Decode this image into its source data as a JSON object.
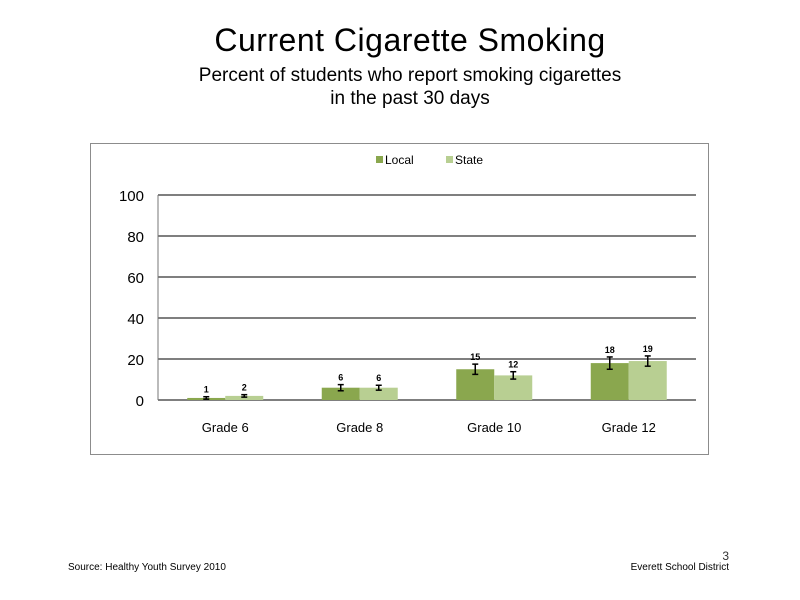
{
  "slide": {
    "title": "Current Cigarette Smoking",
    "subtitle_line1": "Percent of students who report smoking cigarettes",
    "subtitle_line2": "in the past 30 days",
    "source": "Source: Healthy Youth Survey 2010",
    "organization": "Everett School District",
    "page_number": "3"
  },
  "chart_data": {
    "type": "bar",
    "categories": [
      "Grade 6",
      "Grade 8",
      "Grade 10",
      "Grade 12"
    ],
    "series": [
      {
        "name": "Local",
        "values": [
          1,
          6,
          15,
          18
        ],
        "error": [
          0.6,
          1.5,
          2.5,
          3
        ],
        "color": "#8aa74e"
      },
      {
        "name": "State",
        "values": [
          2,
          6,
          12,
          19
        ],
        "error": [
          0.6,
          1.2,
          1.8,
          2.5
        ],
        "color": "#b8cf92"
      }
    ],
    "yticks": [
      0,
      20,
      40,
      60,
      80,
      100
    ],
    "ylim": [
      0,
      100
    ],
    "grid": true,
    "legend_position": "top-center"
  }
}
